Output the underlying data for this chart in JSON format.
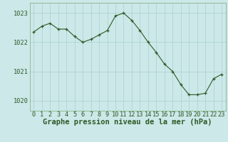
{
  "x": [
    0,
    1,
    2,
    3,
    4,
    5,
    6,
    7,
    8,
    9,
    10,
    11,
    12,
    13,
    14,
    15,
    16,
    17,
    18,
    19,
    20,
    21,
    22,
    23
  ],
  "y": [
    1022.35,
    1022.55,
    1022.65,
    1022.45,
    1022.45,
    1022.2,
    1022.0,
    1022.1,
    1022.25,
    1022.4,
    1022.9,
    1023.0,
    1022.75,
    1022.4,
    1022.0,
    1021.65,
    1021.25,
    1021.0,
    1020.55,
    1020.2,
    1020.2,
    1020.25,
    1020.75,
    1020.9
  ],
  "line_color": "#2d5a27",
  "marker": "+",
  "bg_color": "#cce8e8",
  "grid_color": "#aad0d0",
  "ylabel_ticks": [
    1020,
    1021,
    1022,
    1023
  ],
  "xlabel_label": "Graphe pression niveau de la mer (hPa)",
  "xlabel_ticks": [
    0,
    1,
    2,
    3,
    4,
    5,
    6,
    7,
    8,
    9,
    10,
    11,
    12,
    13,
    14,
    15,
    16,
    17,
    18,
    19,
    20,
    21,
    22,
    23
  ],
  "ylim": [
    1019.65,
    1023.35
  ],
  "xlim": [
    -0.5,
    23.5
  ],
  "axis_fontsize": 6.2,
  "label_fontsize": 7.5,
  "spine_color": "#7aaa7a"
}
